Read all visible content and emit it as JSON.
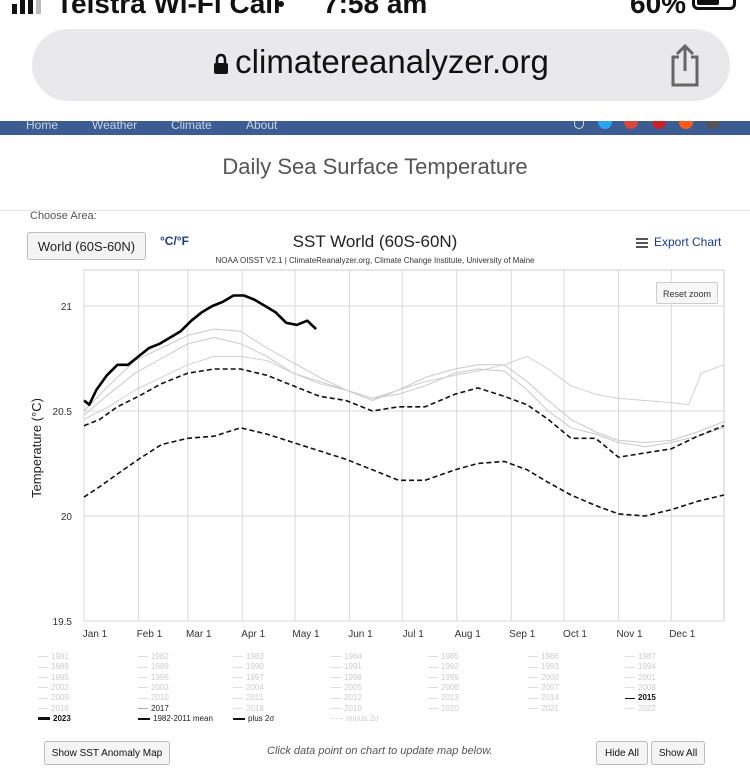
{
  "status_bar": {
    "carrier": "Telstra Wi-Fi Call",
    "time": "7:58 am",
    "battery": "60%"
  },
  "browser": {
    "url": "climatereanalyzer.org"
  },
  "nav": {
    "items": [
      "Home",
      "Weather",
      "Climate",
      "About"
    ]
  },
  "page": {
    "title": "Daily Sea Surface Temperature",
    "choose_area_label": "Choose Area:",
    "area_selected": "World (60S-60N)",
    "unit_toggle": "°C/°F",
    "export_label": "Export Chart",
    "reset_zoom_label": "Reset zoom",
    "show_map_label": "Show SST Anomaly Map",
    "hint": "Click data point on chart to update map below.",
    "hide_all_label": "Hide All",
    "show_all_label": "Show All"
  },
  "chart_data": {
    "type": "line",
    "title": "SST World (60S-60N)",
    "subtitle": "NOAA OISST V2.1 | ClimateReanalyzer.org, Climate Change Institute, University of Maine",
    "ylabel": "Temperature (°C)",
    "ylim": [
      19.5,
      21.05
    ],
    "yticks": [
      "19.5",
      "20",
      "20.5",
      "21"
    ],
    "xticks": [
      "Jan 1",
      "Feb 1",
      "Mar 1",
      "Apr 1",
      "May 1",
      "Jun 1",
      "Jul 1",
      "Aug 1",
      "Sep 1",
      "Oct 1",
      "Nov 1",
      "Dec 1"
    ],
    "x_unit": "day of year",
    "grid": true,
    "series": [
      {
        "name": "2023",
        "style": "solid-thick",
        "color": "#000000",
        "points": [
          [
            1,
            20.55
          ],
          [
            4,
            20.53
          ],
          [
            8,
            20.6
          ],
          [
            14,
            20.67
          ],
          [
            20,
            20.72
          ],
          [
            26,
            20.72
          ],
          [
            32,
            20.76
          ],
          [
            38,
            20.8
          ],
          [
            44,
            20.82
          ],
          [
            50,
            20.85
          ],
          [
            56,
            20.88
          ],
          [
            62,
            20.93
          ],
          [
            68,
            20.97
          ],
          [
            74,
            21.0
          ],
          [
            80,
            21.02
          ],
          [
            86,
            21.05
          ],
          [
            92,
            21.05
          ],
          [
            98,
            21.03
          ],
          [
            104,
            21.0
          ],
          [
            110,
            20.97
          ],
          [
            116,
            20.92
          ],
          [
            122,
            20.91
          ],
          [
            128,
            20.93
          ],
          [
            133,
            20.89
          ]
        ]
      },
      {
        "name": "1982-2011 mean",
        "style": "dashed",
        "color": "#111111",
        "points": [
          [
            1,
            20.43
          ],
          [
            10,
            20.46
          ],
          [
            20,
            20.52
          ],
          [
            32,
            20.57
          ],
          [
            45,
            20.63
          ],
          [
            60,
            20.68
          ],
          [
            75,
            20.7
          ],
          [
            90,
            20.7
          ],
          [
            105,
            20.67
          ],
          [
            120,
            20.62
          ],
          [
            135,
            20.57
          ],
          [
            150,
            20.55
          ],
          [
            165,
            20.5
          ],
          [
            180,
            20.52
          ],
          [
            195,
            20.52
          ],
          [
            212,
            20.58
          ],
          [
            225,
            20.61
          ],
          [
            240,
            20.57
          ],
          [
            253,
            20.53
          ],
          [
            265,
            20.46
          ],
          [
            278,
            20.37
          ],
          [
            292,
            20.37
          ],
          [
            305,
            20.28
          ],
          [
            320,
            20.3
          ],
          [
            335,
            20.32
          ],
          [
            350,
            20.38
          ],
          [
            365,
            20.43
          ]
        ]
      },
      {
        "name": "plus 2σ",
        "style": "dashed",
        "color": "#111111",
        "points": [
          [
            1,
            20.09
          ],
          [
            10,
            20.14
          ],
          [
            20,
            20.2
          ],
          [
            32,
            20.27
          ],
          [
            45,
            20.34
          ],
          [
            60,
            20.37
          ],
          [
            75,
            20.38
          ],
          [
            90,
            20.42
          ],
          [
            105,
            20.39
          ],
          [
            120,
            20.35
          ],
          [
            135,
            20.31
          ],
          [
            150,
            20.27
          ],
          [
            165,
            20.22
          ],
          [
            180,
            20.17
          ],
          [
            195,
            20.17
          ],
          [
            212,
            20.22
          ],
          [
            225,
            20.25
          ],
          [
            240,
            20.26
          ],
          [
            253,
            20.22
          ],
          [
            265,
            20.16
          ],
          [
            278,
            20.1
          ],
          [
            292,
            20.05
          ],
          [
            305,
            20.01
          ],
          [
            320,
            20.0
          ],
          [
            335,
            20.03
          ],
          [
            350,
            20.07
          ],
          [
            365,
            20.1
          ]
        ]
      },
      {
        "name": "2017",
        "style": "solid-thin",
        "color": "#c8c8c8",
        "points": [
          [
            1,
            20.48
          ],
          [
            15,
            20.58
          ],
          [
            30,
            20.68
          ],
          [
            45,
            20.75
          ],
          [
            60,
            20.82
          ],
          [
            75,
            20.85
          ],
          [
            90,
            20.82
          ],
          [
            105,
            20.76
          ],
          [
            120,
            20.68
          ],
          [
            135,
            20.64
          ],
          [
            150,
            20.6
          ],
          [
            165,
            20.56
          ],
          [
            180,
            20.58
          ],
          [
            195,
            20.62
          ],
          [
            212,
            20.68
          ],
          [
            225,
            20.7
          ],
          [
            240,
            20.69
          ],
          [
            253,
            20.6
          ],
          [
            265,
            20.5
          ],
          [
            278,
            20.42
          ],
          [
            292,
            20.39
          ],
          [
            305,
            20.35
          ],
          [
            320,
            20.33
          ],
          [
            335,
            20.35
          ],
          [
            350,
            20.38
          ],
          [
            365,
            20.42
          ]
        ]
      },
      {
        "name": "2016",
        "style": "solid-thin",
        "color": "#c8c8c8",
        "points": [
          [
            1,
            20.5
          ],
          [
            15,
            20.62
          ],
          [
            30,
            20.74
          ],
          [
            45,
            20.8
          ],
          [
            60,
            20.86
          ],
          [
            75,
            20.89
          ],
          [
            90,
            20.88
          ],
          [
            105,
            20.8
          ],
          [
            120,
            20.73
          ],
          [
            135,
            20.66
          ],
          [
            150,
            20.6
          ],
          [
            165,
            20.55
          ],
          [
            180,
            20.6
          ],
          [
            195,
            20.66
          ],
          [
            212,
            20.7
          ],
          [
            225,
            20.72
          ],
          [
            240,
            20.72
          ],
          [
            253,
            20.64
          ],
          [
            265,
            20.55
          ],
          [
            278,
            20.46
          ],
          [
            292,
            20.4
          ],
          [
            305,
            20.36
          ],
          [
            320,
            20.35
          ],
          [
            335,
            20.36
          ],
          [
            350,
            20.4
          ],
          [
            365,
            20.45
          ]
        ]
      },
      {
        "name": "2015",
        "style": "solid-thin",
        "color": "#d0d0d0",
        "points": [
          [
            1,
            20.46
          ],
          [
            15,
            20.52
          ],
          [
            30,
            20.6
          ],
          [
            45,
            20.66
          ],
          [
            60,
            20.72
          ],
          [
            75,
            20.76
          ],
          [
            90,
            20.76
          ],
          [
            105,
            20.74
          ],
          [
            120,
            20.68
          ],
          [
            135,
            20.63
          ],
          [
            150,
            20.6
          ],
          [
            165,
            20.56
          ],
          [
            180,
            20.6
          ],
          [
            195,
            20.64
          ],
          [
            212,
            20.67
          ],
          [
            225,
            20.69
          ],
          [
            240,
            20.72
          ],
          [
            253,
            20.76
          ],
          [
            265,
            20.7
          ],
          [
            278,
            20.62
          ],
          [
            292,
            20.58
          ],
          [
            305,
            20.56
          ],
          [
            320,
            20.55
          ],
          [
            335,
            20.54
          ],
          [
            345,
            20.53
          ],
          [
            352,
            20.68
          ],
          [
            365,
            20.72
          ]
        ]
      }
    ],
    "legend_years": [
      "1981",
      "1982",
      "1983",
      "1984",
      "1985",
      "1986",
      "1987",
      "1988",
      "1989",
      "1990",
      "1991",
      "1992",
      "1993",
      "1994",
      "1995",
      "1996",
      "1997",
      "1998",
      "1999",
      "2000",
      "2001",
      "2002",
      "2003",
      "2004",
      "2005",
      "2006",
      "2007",
      "2008",
      "2009",
      "2010",
      "2011",
      "2012",
      "2013",
      "2014",
      "2015",
      "2016",
      "2017",
      "2018",
      "2019",
      "2020",
      "2021",
      "2022"
    ],
    "legend_extra": [
      "2023",
      "1982-2011 mean",
      "plus 2σ",
      "minus 2σ"
    ]
  }
}
